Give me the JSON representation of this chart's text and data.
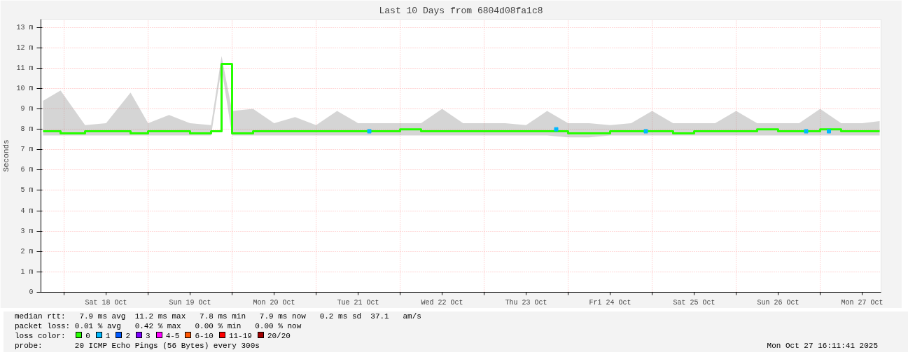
{
  "chart_data": {
    "type": "step",
    "title": "Last 10 Days from 6804d08fa1c8",
    "ylabel": "Seconds",
    "xlim": [
      "2025-10-17T17:24",
      "2025-10-27T17:24"
    ],
    "xticks": [
      {
        "value": "2025-10-18T00:00",
        "label": null
      },
      {
        "value": "2025-10-18T12:00",
        "label": "Sat 18 Oct"
      },
      {
        "value": "2025-10-19T00:00",
        "label": null
      },
      {
        "value": "2025-10-19T12:00",
        "label": "Sun 19 Oct"
      },
      {
        "value": "2025-10-20T00:00",
        "label": null
      },
      {
        "value": "2025-10-20T12:00",
        "label": "Mon 20 Oct"
      },
      {
        "value": "2025-10-21T00:00",
        "label": null
      },
      {
        "value": "2025-10-21T12:00",
        "label": "Tue 21 Oct"
      },
      {
        "value": "2025-10-22T00:00",
        "label": null
      },
      {
        "value": "2025-10-22T12:00",
        "label": "Wed 22 Oct"
      },
      {
        "value": "2025-10-23T00:00",
        "label": null
      },
      {
        "value": "2025-10-23T12:00",
        "label": "Thu 23 Oct"
      },
      {
        "value": "2025-10-24T00:00",
        "label": null
      },
      {
        "value": "2025-10-24T12:00",
        "label": "Fri 24 Oct"
      },
      {
        "value": "2025-10-25T00:00",
        "label": null
      },
      {
        "value": "2025-10-25T12:00",
        "label": "Sat 25 Oct"
      },
      {
        "value": "2025-10-26T00:00",
        "label": null
      },
      {
        "value": "2025-10-26T12:00",
        "label": "Sun 26 Oct"
      },
      {
        "value": "2025-10-27T00:00",
        "label": null
      },
      {
        "value": "2025-10-27T12:00",
        "label": "Mon 27 Oct"
      }
    ],
    "ylim": [
      0,
      13.4
    ],
    "yticks": [
      0,
      {
        "value": 1,
        "label": "1 m"
      },
      {
        "value": 2,
        "label": "2 m"
      },
      {
        "value": 3,
        "label": "3 m"
      },
      {
        "value": 4,
        "label": "4 m"
      },
      {
        "value": 5,
        "label": "5 m"
      },
      {
        "value": 6,
        "label": "6 m"
      },
      {
        "value": 7,
        "label": "7 m"
      },
      {
        "value": 8,
        "label": "8 m"
      },
      {
        "value": 9,
        "label": "9 m"
      },
      {
        "value": 10,
        "label": "10 m"
      },
      {
        "value": 11,
        "label": "11 m"
      },
      {
        "value": 12,
        "label": "12 m"
      },
      {
        "value": 13,
        "label": "13 m"
      }
    ],
    "grid": true,
    "legend": "bottom",
    "legend_title": "loss color:",
    "line_style": "solid",
    "series": [
      {
        "name": "0",
        "color": "#26ff00",
        "x": [
          "2025-10-17T18:00",
          "2025-10-17T23:00",
          "2025-10-18T06:00",
          "2025-10-18T12:00",
          "2025-10-18T19:00",
          "2025-10-19T00:00",
          "2025-10-19T06:00",
          "2025-10-19T12:00",
          "2025-10-19T18:00",
          "2025-10-19T21:00",
          "2025-10-20T00:00",
          "2025-10-20T06:00",
          "2025-10-20T12:00",
          "2025-10-20T18:00",
          "2025-10-21T00:00",
          "2025-10-21T06:00",
          "2025-10-21T12:00",
          "2025-10-21T18:00",
          "2025-10-22T00:00",
          "2025-10-22T06:00",
          "2025-10-22T12:00",
          "2025-10-22T18:00",
          "2025-10-23T00:00",
          "2025-10-23T06:00",
          "2025-10-23T12:00",
          "2025-10-23T18:00",
          "2025-10-24T00:00",
          "2025-10-24T06:00",
          "2025-10-24T12:00",
          "2025-10-24T18:00",
          "2025-10-25T00:00",
          "2025-10-25T06:00",
          "2025-10-25T12:00",
          "2025-10-25T18:00",
          "2025-10-26T00:00",
          "2025-10-26T06:00",
          "2025-10-26T12:00",
          "2025-10-26T18:00",
          "2025-10-27T00:00",
          "2025-10-27T06:00",
          "2025-10-27T12:00",
          "2025-10-27T17:00"
        ],
        "values": [
          7.9,
          7.8,
          7.9,
          7.9,
          7.8,
          7.9,
          7.9,
          7.8,
          7.9,
          11.2,
          7.8,
          7.9,
          7.9,
          7.9,
          7.9,
          7.9,
          7.9,
          7.9,
          8.0,
          7.9,
          7.9,
          7.9,
          7.9,
          7.9,
          7.9,
          7.9,
          7.8,
          7.8,
          7.9,
          7.9,
          7.9,
          7.8,
          7.9,
          7.9,
          7.9,
          8.0,
          7.9,
          7.9,
          8.0,
          7.9,
          7.9,
          7.9
        ],
        "lower": [
          7.7,
          7.7,
          7.7,
          7.7,
          7.7,
          7.7,
          7.7,
          7.7,
          7.7,
          11.0,
          7.7,
          7.7,
          7.7,
          7.7,
          7.7,
          7.7,
          7.7,
          7.7,
          7.7,
          7.7,
          7.7,
          7.7,
          7.7,
          7.7,
          7.7,
          7.7,
          7.6,
          7.6,
          7.7,
          7.7,
          7.7,
          7.7,
          7.7,
          7.7,
          7.7,
          7.7,
          7.7,
          7.7,
          7.7,
          7.7,
          7.7,
          7.7
        ],
        "upper": [
          9.4,
          9.9,
          8.2,
          8.3,
          9.8,
          8.3,
          8.7,
          8.3,
          8.2,
          11.6,
          8.9,
          9.0,
          8.3,
          8.6,
          8.2,
          8.9,
          8.3,
          8.3,
          8.3,
          8.3,
          9.0,
          8.3,
          8.3,
          8.3,
          8.2,
          8.9,
          8.3,
          8.3,
          8.2,
          8.3,
          8.9,
          8.3,
          8.3,
          8.3,
          8.9,
          8.3,
          8.3,
          8.3,
          9.0,
          8.3,
          8.3,
          8.4
        ]
      },
      {
        "name": "1",
        "color": "#00b8ff",
        "type": "scatter",
        "x": [
          "2025-10-21T15:12",
          "2025-10-23T20:36",
          "2025-10-24T22:12",
          "2025-10-26T20:00",
          "2025-10-27T02:30"
        ],
        "values": [
          7.9,
          8.0,
          7.9,
          7.9,
          7.9
        ]
      },
      {
        "name": "2",
        "color": "#0059ff",
        "type": "scatter"
      },
      {
        "name": "3",
        "color": "#7e00ff",
        "type": "scatter"
      },
      {
        "name": "4-5",
        "color": "#ff00ff",
        "type": "scatter"
      },
      {
        "name": "6-10",
        "color": "#ff5500",
        "type": "scatter"
      },
      {
        "name": "11-19",
        "color": "#ff0000",
        "type": "scatter"
      },
      {
        "name": "20/20",
        "color": "#a10000",
        "type": "scatter"
      }
    ],
    "annotations": [
      "median rtt:   7.9 ms avg  11.2 ms max   7.8 ms min   7.9 ms now   0.2 ms sd  37.1   am/s",
      "packet loss: 0.01 % avg   0.42 % max   0.00 % min   0.00 % now",
      "probe:       20 ICMP Echo Pings (56 Bytes) every 300s",
      "Mon Oct 27 16:11:41 2025"
    ]
  }
}
